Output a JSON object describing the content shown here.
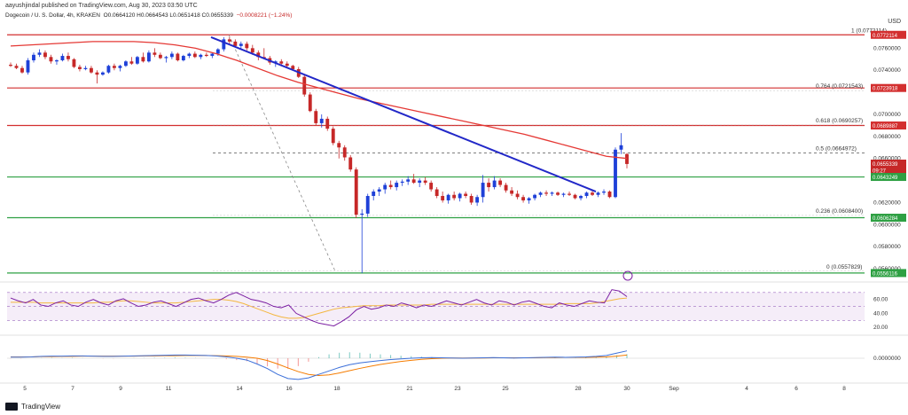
{
  "header": {
    "published": "aayushjindal published on TradingView.com, Aug 30, 2023 03:50 UTC"
  },
  "symbol_line": {
    "title": "Dogecoin / U. S. Dollar, 4h, KRAKEN",
    "ohlc": "O0.0664120 H0.0664543 L0.0651418 C0.0655339",
    "change": "−0.0008221 (−1.24%)"
  },
  "currency": "USD",
  "footer": {
    "brand": "TradingView"
  },
  "colors": {
    "up": "#1e40d8",
    "down": "#c62828",
    "ma": "#e53935",
    "trend": "#2228c8",
    "support": "#2ea043",
    "resistance": "#d32f2f",
    "rsi": "#7b1fa2",
    "rsi_ma": "#f4b740",
    "macd": "#3b6fd9",
    "signal": "#f57c00"
  },
  "chart_data": [
    {
      "type": "candlestick",
      "title": "Dogecoin / U. S. Dollar, 4h, KRAKEN",
      "ylim": [
        0.0548,
        0.0786
      ],
      "y_ticks": [
        "0.0760000",
        "0.0740000",
        "0.0700000",
        "0.0680000",
        "0.0660000",
        "0.0620000",
        "0.0600000",
        "0.0580000",
        "0.0560000"
      ],
      "x_ticks": [
        "5",
        "7",
        "9",
        "11",
        "14",
        "16",
        "18",
        "21",
        "23",
        "25",
        "28",
        "30",
        "Sep",
        "4",
        "6",
        "8"
      ],
      "candles": [
        [
          0.0745,
          0.0747,
          0.0743,
          0.0744
        ],
        [
          0.0744,
          0.0746,
          0.0741,
          0.0742
        ],
        [
          0.0742,
          0.0744,
          0.0737,
          0.0738
        ],
        [
          0.0738,
          0.0751,
          0.0736,
          0.0749
        ],
        [
          0.0749,
          0.0756,
          0.0747,
          0.0754
        ],
        [
          0.0754,
          0.0759,
          0.0752,
          0.0756
        ],
        [
          0.0756,
          0.0758,
          0.075,
          0.0752
        ],
        [
          0.0752,
          0.0754,
          0.0746,
          0.0748
        ],
        [
          0.0748,
          0.075,
          0.0745,
          0.0749
        ],
        [
          0.0749,
          0.0755,
          0.0748,
          0.0753
        ],
        [
          0.0753,
          0.0756,
          0.0748,
          0.075
        ],
        [
          0.075,
          0.0751,
          0.0742,
          0.0743
        ],
        [
          0.0743,
          0.0745,
          0.0739,
          0.0741
        ],
        [
          0.0741,
          0.0744,
          0.074,
          0.0742
        ],
        [
          0.0742,
          0.0744,
          0.0737,
          0.0738
        ],
        [
          0.0738,
          0.074,
          0.0728,
          0.0736
        ],
        [
          0.0736,
          0.0739,
          0.0735,
          0.0738
        ],
        [
          0.0738,
          0.0745,
          0.0737,
          0.0744
        ],
        [
          0.0744,
          0.0746,
          0.074,
          0.0742
        ],
        [
          0.0742,
          0.0745,
          0.0739,
          0.0744
        ],
        [
          0.0744,
          0.0749,
          0.0743,
          0.0748
        ],
        [
          0.0748,
          0.0752,
          0.0745,
          0.0746
        ],
        [
          0.0746,
          0.0753,
          0.0745,
          0.0752
        ],
        [
          0.0752,
          0.0756,
          0.0747,
          0.0748
        ],
        [
          0.0748,
          0.0758,
          0.0747,
          0.0756
        ],
        [
          0.0756,
          0.076,
          0.0752,
          0.0754
        ],
        [
          0.0754,
          0.0756,
          0.075,
          0.0751
        ],
        [
          0.0751,
          0.0753,
          0.0747,
          0.0752
        ],
        [
          0.0752,
          0.0757,
          0.075,
          0.0755
        ],
        [
          0.0755,
          0.0756,
          0.0748,
          0.0749
        ],
        [
          0.0749,
          0.0754,
          0.0748,
          0.0753
        ],
        [
          0.0753,
          0.0756,
          0.0751,
          0.0755
        ],
        [
          0.0755,
          0.0757,
          0.0751,
          0.0752
        ],
        [
          0.0752,
          0.0755,
          0.075,
          0.0754
        ],
        [
          0.0754,
          0.0756,
          0.0752,
          0.0753
        ],
        [
          0.0753,
          0.0756,
          0.0751,
          0.0755
        ],
        [
          0.0755,
          0.076,
          0.0753,
          0.0759
        ],
        [
          0.0759,
          0.077,
          0.0757,
          0.0768
        ],
        [
          0.0768,
          0.077,
          0.0764,
          0.0766
        ],
        [
          0.0766,
          0.0768,
          0.0761,
          0.0762
        ],
        [
          0.0762,
          0.0766,
          0.0759,
          0.0764
        ],
        [
          0.0764,
          0.0766,
          0.0758,
          0.076
        ],
        [
          0.076,
          0.0763,
          0.0754,
          0.0756
        ],
        [
          0.0756,
          0.0758,
          0.0749,
          0.0752
        ],
        [
          0.0752,
          0.076,
          0.075,
          0.0751
        ],
        [
          0.0751,
          0.0753,
          0.0745,
          0.0747
        ],
        [
          0.0747,
          0.0749,
          0.0743,
          0.0748
        ],
        [
          0.0748,
          0.075,
          0.0744,
          0.0746
        ],
        [
          0.0746,
          0.0748,
          0.0742,
          0.0744
        ],
        [
          0.0744,
          0.0745,
          0.074,
          0.0741
        ],
        [
          0.0741,
          0.0743,
          0.0733,
          0.0734
        ],
        [
          0.0734,
          0.0736,
          0.0716,
          0.0718
        ],
        [
          0.0718,
          0.072,
          0.0702,
          0.0703
        ],
        [
          0.0703,
          0.0705,
          0.069,
          0.0692
        ],
        [
          0.0692,
          0.07,
          0.0688,
          0.0696
        ],
        [
          0.0696,
          0.0698,
          0.0685,
          0.0687
        ],
        [
          0.0687,
          0.0689,
          0.0672,
          0.0674
        ],
        [
          0.0674,
          0.0676,
          0.066,
          0.067
        ],
        [
          0.067,
          0.0672,
          0.0658,
          0.0661
        ],
        [
          0.0661,
          0.0663,
          0.0648,
          0.065
        ],
        [
          0.065,
          0.0652,
          0.0606,
          0.0609
        ],
        [
          0.0609,
          0.0614,
          0.0556,
          0.061
        ],
        [
          0.061,
          0.0628,
          0.0607,
          0.0626
        ],
        [
          0.0626,
          0.0632,
          0.0622,
          0.063
        ],
        [
          0.063,
          0.0634,
          0.0626,
          0.0632
        ],
        [
          0.0632,
          0.0638,
          0.0628,
          0.0636
        ],
        [
          0.0636,
          0.064,
          0.0632,
          0.0634
        ],
        [
          0.0634,
          0.064,
          0.0631,
          0.0638
        ],
        [
          0.0638,
          0.0641,
          0.0635,
          0.0639
        ],
        [
          0.0639,
          0.0644,
          0.0636,
          0.0641
        ],
        [
          0.0641,
          0.0646,
          0.0637,
          0.0638
        ],
        [
          0.0638,
          0.0642,
          0.0634,
          0.064
        ],
        [
          0.064,
          0.0643,
          0.0636,
          0.0638
        ],
        [
          0.0638,
          0.064,
          0.063,
          0.0632
        ],
        [
          0.0632,
          0.0634,
          0.0624,
          0.0626
        ],
        [
          0.0626,
          0.063,
          0.062,
          0.0622
        ],
        [
          0.0622,
          0.0628,
          0.0619,
          0.0627
        ],
        [
          0.0627,
          0.063,
          0.0622,
          0.0624
        ],
        [
          0.0624,
          0.0629,
          0.0621,
          0.0628
        ],
        [
          0.0628,
          0.063,
          0.0624,
          0.0626
        ],
        [
          0.0626,
          0.0628,
          0.0618,
          0.062
        ],
        [
          0.062,
          0.0627,
          0.0617,
          0.0625
        ],
        [
          0.0625,
          0.0645,
          0.062,
          0.0638
        ],
        [
          0.0638,
          0.0642,
          0.063,
          0.0634
        ],
        [
          0.0634,
          0.0644,
          0.0632,
          0.064
        ],
        [
          0.064,
          0.0642,
          0.0634,
          0.0636
        ],
        [
          0.0636,
          0.0638,
          0.0629,
          0.0631
        ],
        [
          0.0631,
          0.0634,
          0.0626,
          0.0628
        ],
        [
          0.0628,
          0.0631,
          0.0623,
          0.0625
        ],
        [
          0.0625,
          0.0627,
          0.062,
          0.0622
        ],
        [
          0.0622,
          0.0625,
          0.0619,
          0.0624
        ],
        [
          0.0624,
          0.0628,
          0.0622,
          0.0627
        ],
        [
          0.0627,
          0.063,
          0.0625,
          0.0629
        ],
        [
          0.0629,
          0.0631,
          0.0626,
          0.0628
        ],
        [
          0.0628,
          0.063,
          0.0626,
          0.0629
        ],
        [
          0.0629,
          0.063,
          0.0626,
          0.0627
        ],
        [
          0.0627,
          0.0629,
          0.0625,
          0.0628
        ],
        [
          0.0628,
          0.063,
          0.0626,
          0.0627
        ],
        [
          0.0627,
          0.0628,
          0.0623,
          0.0624
        ],
        [
          0.0624,
          0.0627,
          0.0622,
          0.0626
        ],
        [
          0.0626,
          0.063,
          0.0624,
          0.0629
        ],
        [
          0.0629,
          0.0631,
          0.0626,
          0.0627
        ],
        [
          0.0627,
          0.063,
          0.0625,
          0.0629
        ],
        [
          0.0629,
          0.0632,
          0.0627,
          0.063
        ],
        [
          0.063,
          0.0631,
          0.0624,
          0.0625
        ],
        [
          0.0625,
          0.067,
          0.0624,
          0.0668
        ],
        [
          0.0668,
          0.0683,
          0.0664,
          0.0672
        ],
        [
          0.0664,
          0.0665,
          0.0651,
          0.0655
        ]
      ],
      "ma_line": [
        0.0762,
        0.0763,
        0.0764,
        0.0765,
        0.0766,
        0.0766,
        0.0766,
        0.0765,
        0.0763,
        0.076,
        0.0755,
        0.0749,
        0.0742,
        0.0735,
        0.0729,
        0.0724,
        0.0719,
        0.0714,
        0.071,
        0.0706,
        0.0702,
        0.0698,
        0.0694,
        0.069,
        0.0686,
        0.0682,
        0.0677,
        0.0672,
        0.0667,
        0.0662,
        0.066
      ],
      "trend_line": [
        [
          0.077,
          0.063
        ]
      ],
      "levels": [
        {
          "label": "1 (0.0772114)",
          "value": 0.0772114,
          "kind": "fib-top"
        },
        {
          "label": "0.764 (0.0721543)",
          "value": 0.0721543,
          "kind": "fib"
        },
        {
          "label": "0.618 (0.0690257)",
          "value": 0.0690257,
          "kind": "fib"
        },
        {
          "label": "0.5 (0.0664972)",
          "value": 0.0664972,
          "kind": "fib-dash"
        },
        {
          "label": "0.236 (0.0608400)",
          "value": 0.06084,
          "kind": "fib"
        },
        {
          "label": "0 (0.0557829)",
          "value": 0.0557829,
          "kind": "fib"
        }
      ],
      "price_tags": [
        {
          "text": "0.0772114",
          "value": 0.0772114,
          "color": "#d32f2f"
        },
        {
          "text": "0.0723918",
          "value": 0.0723918,
          "color": "#d32f2f"
        },
        {
          "text": "0.0689887",
          "value": 0.0689887,
          "color": "#d32f2f"
        },
        {
          "text": "0.0655339",
          "value": 0.0655339,
          "color": "#c62828",
          "sub": "09:27"
        },
        {
          "text": "0.0643249",
          "value": 0.0643249,
          "color": "#2ea043"
        },
        {
          "text": "0.0606284",
          "value": 0.0606284,
          "color": "#2ea043"
        },
        {
          "text": "0.0556116",
          "value": 0.0556116,
          "color": "#2ea043"
        }
      ],
      "hlines": [
        {
          "value": 0.0772114,
          "color": "#d32f2f"
        },
        {
          "value": 0.0723918,
          "color": "#d32f2f"
        },
        {
          "value": 0.0689887,
          "color": "#d32f2f"
        },
        {
          "value": 0.0643249,
          "color": "#2ea043"
        },
        {
          "value": 0.0606284,
          "color": "#2ea043"
        },
        {
          "value": 0.0556116,
          "color": "#2ea043"
        }
      ]
    },
    {
      "type": "line",
      "ylim": [
        10,
        85
      ],
      "y_ticks": [
        "60.00",
        "40.00",
        "20.00"
      ],
      "band": [
        30,
        70
      ],
      "rsi": [
        62,
        58,
        55,
        60,
        52,
        50,
        55,
        58,
        52,
        50,
        56,
        60,
        55,
        52,
        58,
        61,
        55,
        50,
        52,
        56,
        58,
        54,
        50,
        55,
        60,
        62,
        58,
        55,
        60,
        66,
        70,
        65,
        60,
        58,
        55,
        50,
        48,
        52,
        40,
        35,
        30,
        26,
        24,
        22,
        28,
        35,
        45,
        50,
        46,
        48,
        52,
        50,
        55,
        52,
        48,
        52,
        50,
        54,
        58,
        55,
        52,
        56,
        60,
        55,
        52,
        58,
        56,
        52,
        56,
        58,
        54,
        50,
        48,
        55,
        52,
        50,
        54,
        58,
        56,
        55,
        74,
        72,
        64
      ],
      "rsi_ma": [
        56,
        56,
        56,
        56,
        55,
        55,
        55,
        55,
        55,
        55,
        55,
        55,
        56,
        56,
        57,
        58,
        58,
        57,
        56,
        55,
        55,
        55,
        55,
        56,
        57,
        58,
        59,
        60,
        60,
        59,
        57,
        54,
        50,
        46,
        42,
        38,
        35,
        33,
        33,
        34,
        37,
        40,
        43,
        46,
        48,
        49,
        50,
        51,
        51,
        51,
        52,
        52,
        52,
        52,
        52,
        52,
        53,
        53,
        53,
        53,
        53,
        53,
        53,
        53,
        53,
        53,
        53,
        53,
        53,
        53,
        53,
        53,
        53,
        53,
        54,
        54,
        54,
        54,
        55,
        57,
        59,
        61,
        62
      ]
    },
    {
      "type": "line",
      "y_ticks": [
        "0.0000000"
      ],
      "ylim": [
        -1,
        1
      ],
      "macd": [
        0.05,
        0.05,
        0.06,
        0.08,
        0.09,
        0.09,
        0.1,
        0.1,
        0.09,
        0.08,
        0.08,
        0.09,
        0.1,
        0.11,
        0.12,
        0.13,
        0.14,
        0.14,
        0.13,
        0.12,
        0.1,
        0.06,
        0.0,
        -0.08,
        -0.25,
        -0.45,
        -0.7,
        -0.88,
        -0.92,
        -0.85,
        -0.7,
        -0.55,
        -0.4,
        -0.28,
        -0.2,
        -0.15,
        -0.1,
        -0.06,
        -0.03,
        0.0,
        0.02,
        0.03,
        0.02,
        0.01,
        0.0,
        0.01,
        0.02,
        0.03,
        0.02,
        0.01,
        0.02,
        0.03,
        0.04,
        0.05,
        0.04,
        0.05,
        0.06,
        0.08,
        0.12,
        0.22,
        0.32
      ],
      "signal": [
        0.06,
        0.06,
        0.06,
        0.07,
        0.07,
        0.08,
        0.08,
        0.09,
        0.09,
        0.09,
        0.09,
        0.09,
        0.09,
        0.1,
        0.1,
        0.11,
        0.11,
        0.12,
        0.12,
        0.12,
        0.11,
        0.1,
        0.08,
        0.05,
        0.0,
        -0.1,
        -0.25,
        -0.42,
        -0.58,
        -0.7,
        -0.75,
        -0.72,
        -0.64,
        -0.54,
        -0.44,
        -0.35,
        -0.27,
        -0.2,
        -0.14,
        -0.09,
        -0.05,
        -0.02,
        0.0,
        0.01,
        0.01,
        0.01,
        0.01,
        0.02,
        0.02,
        0.02,
        0.02,
        0.02,
        0.03,
        0.03,
        0.04,
        0.04,
        0.04,
        0.05,
        0.06,
        0.09,
        0.14
      ]
    }
  ]
}
